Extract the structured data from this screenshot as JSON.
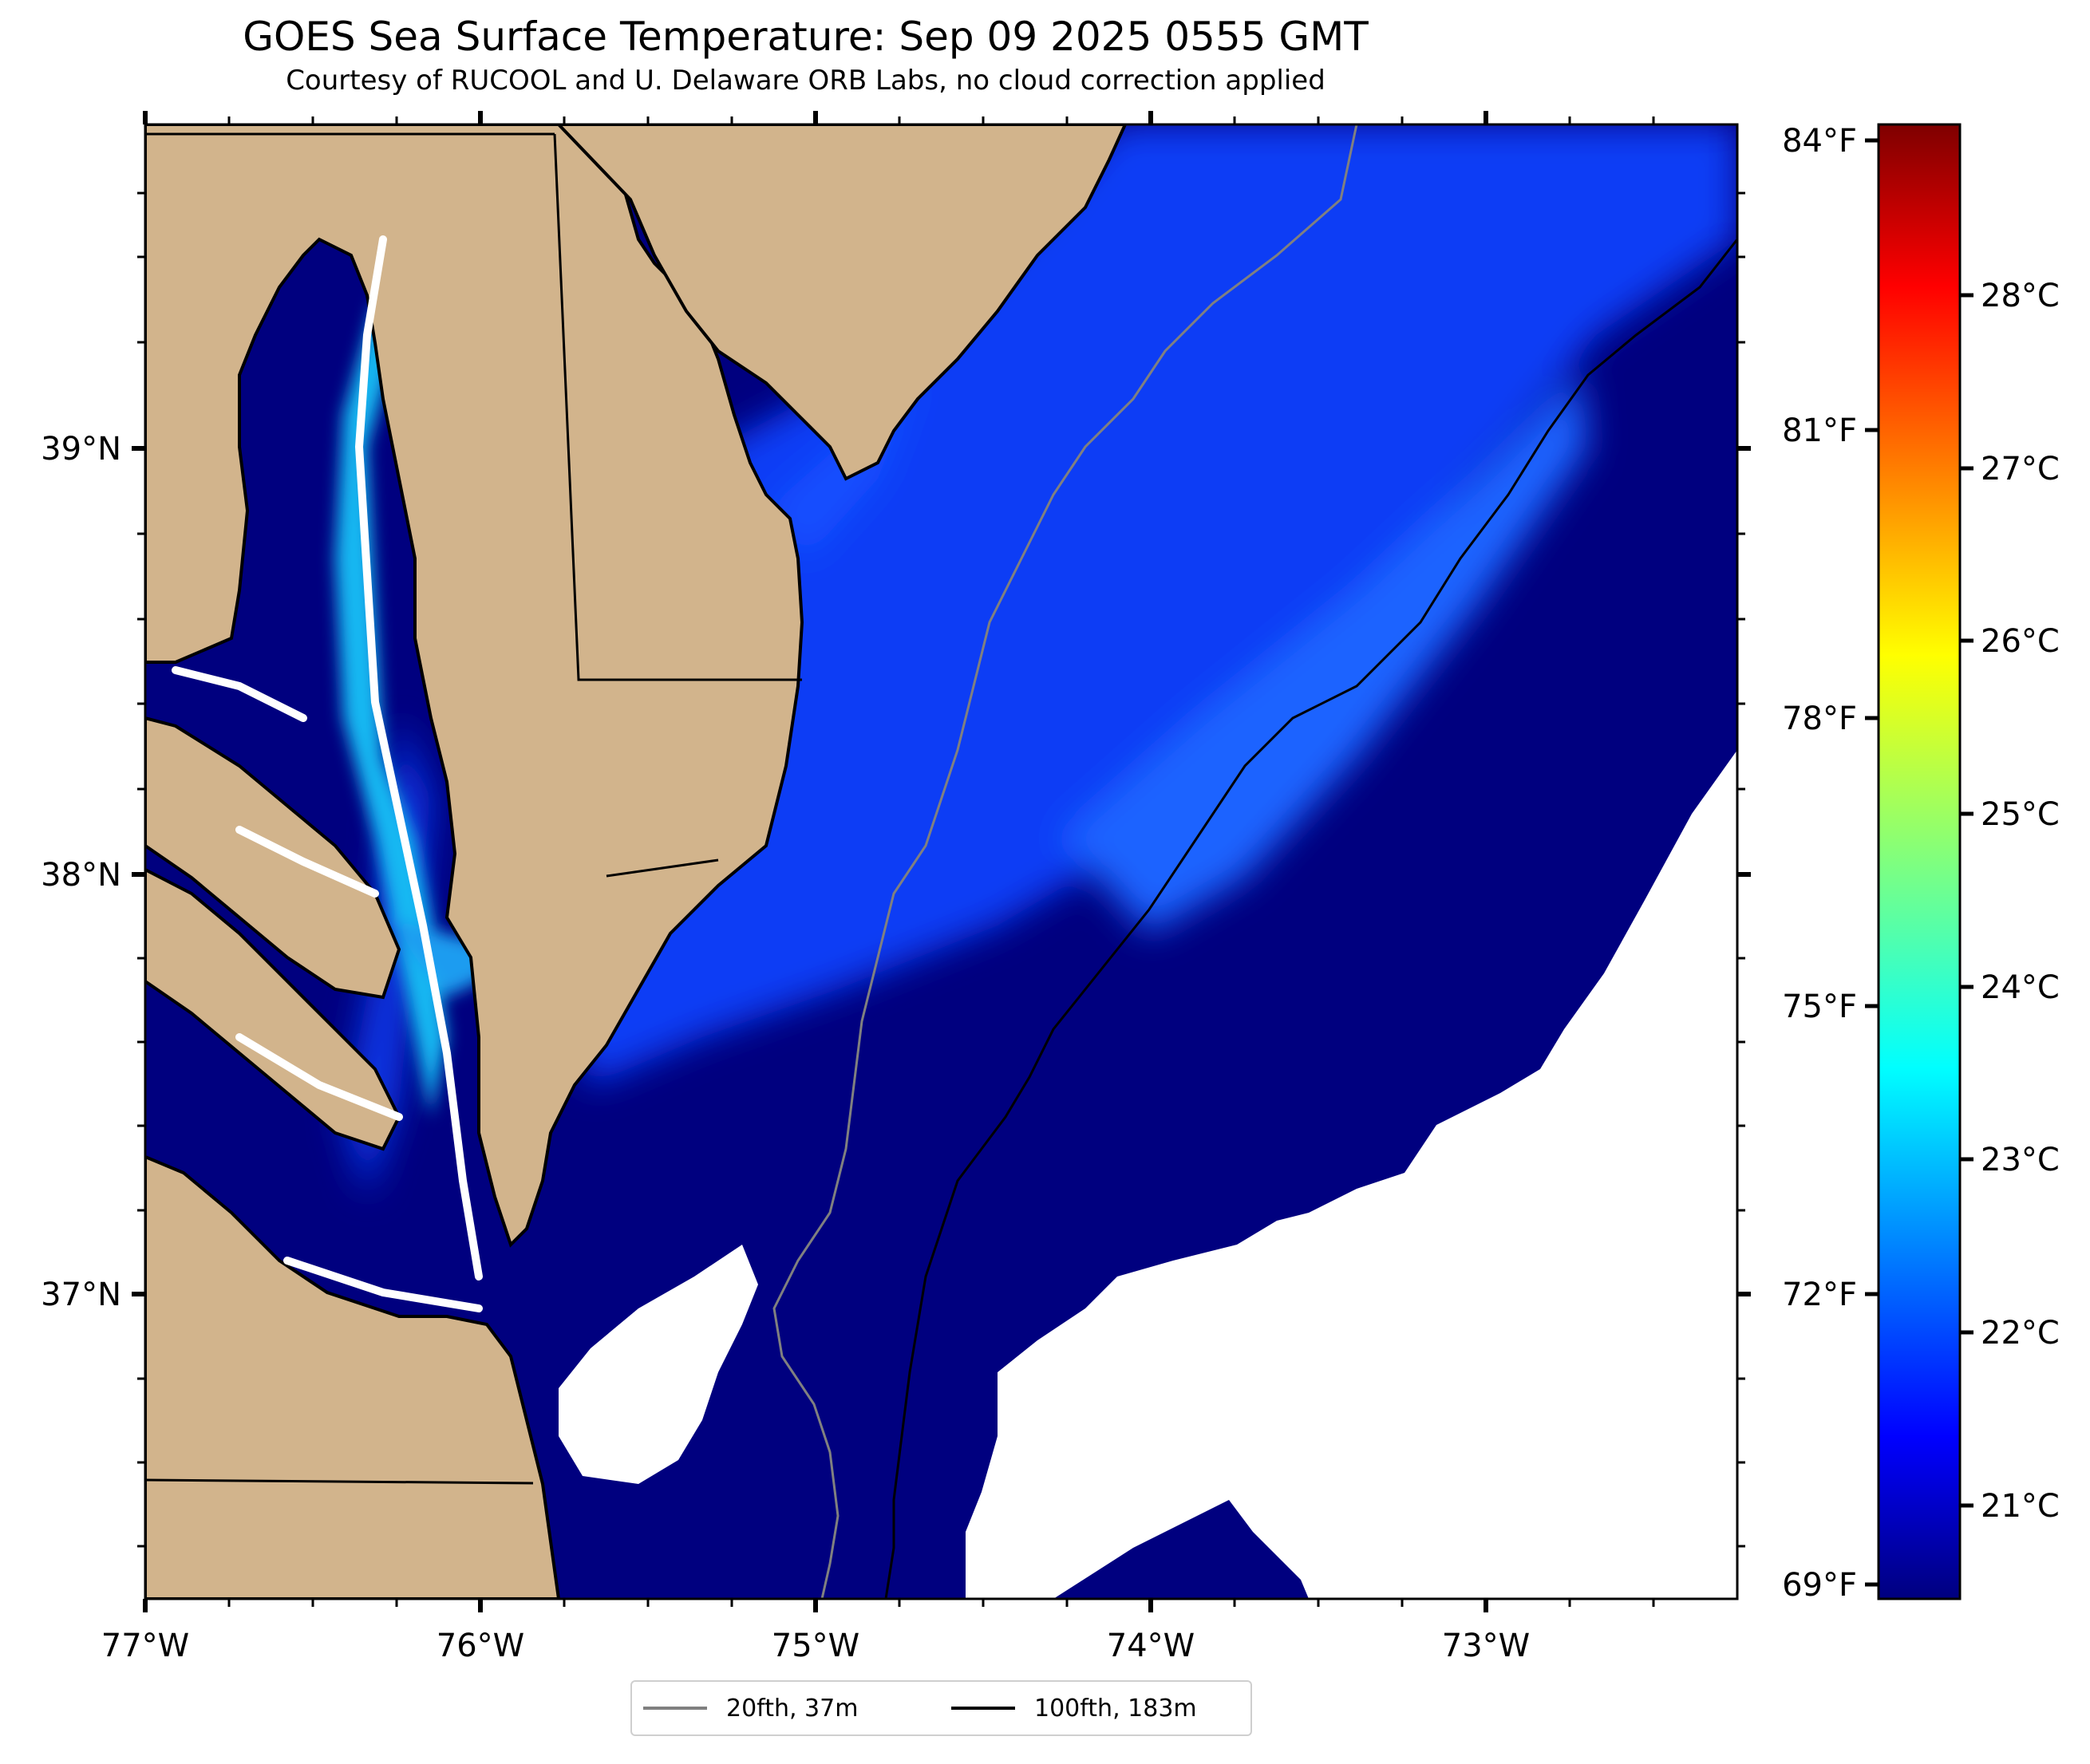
{
  "title": "GOES Sea Surface Temperature: Sep 09 2025 0555 GMT",
  "subtitle": "Courtesy of RUCOOL and U. Delaware ORB Labs, no cloud correction applied",
  "colors": {
    "land": "#d2b48c",
    "ocean_cold": "#00007f",
    "no_data": "#ffffff",
    "isobath_20fth": "#808080",
    "isobath_100fth": "#000000"
  },
  "axes": {
    "lon_ticks": [
      "77°W",
      "76°W",
      "75°W",
      "74°W",
      "73°W"
    ],
    "lat_ticks": [
      "39°N",
      "38°N",
      "37°N"
    ],
    "lon_range": [
      -77.0,
      -72.25
    ],
    "lat_range": [
      36.3,
      39.75
    ]
  },
  "colorbar": {
    "f_labels": [
      "84°F",
      "81°F",
      "78°F",
      "75°F",
      "72°F",
      "69°F"
    ],
    "c_labels": [
      "28°C",
      "27°C",
      "26°C",
      "25°C",
      "24°C",
      "23°C",
      "22°C",
      "21°C"
    ],
    "range_f": [
      69,
      84
    ]
  },
  "legend": [
    {
      "label": "20fth, 37m",
      "color": "#808080"
    },
    {
      "label": "100fth, 183m",
      "color": "#000000"
    }
  ]
}
